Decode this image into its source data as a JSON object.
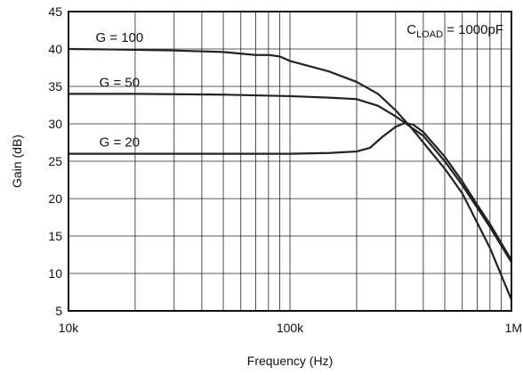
{
  "chart_data": {
    "type": "line",
    "title": "",
    "xlabel": "Frequency (Hz)",
    "ylabel": "Gain (dB)",
    "x_scale": "log",
    "xlim": [
      10000,
      1000000
    ],
    "ylim": [
      5,
      45
    ],
    "x_ticks": [
      {
        "value": 10000,
        "label": "10k"
      },
      {
        "value": 100000,
        "label": "100k"
      },
      {
        "value": 1000000,
        "label": "1M"
      }
    ],
    "y_ticks": [
      5,
      10,
      15,
      20,
      25,
      30,
      35,
      40,
      45
    ],
    "y_tick_labels": [
      "5",
      "10",
      "15",
      "20",
      "25",
      "30",
      "35",
      "40",
      "45"
    ],
    "grid": true,
    "annotation": {
      "main": "C",
      "subscript": "LOAD",
      "suffix": " = 1000pF"
    },
    "series": [
      {
        "name": "G = 100",
        "x": [
          10000,
          20000,
          30000,
          50000,
          70000,
          80000,
          90000,
          100000,
          150000,
          200000,
          250000,
          300000,
          350000,
          400000,
          500000,
          600000,
          700000,
          800000,
          1000000
        ],
        "y": [
          40,
          39.9,
          39.8,
          39.6,
          39.2,
          39.2,
          39.0,
          38.4,
          37.0,
          35.6,
          34.0,
          31.8,
          29.6,
          27.5,
          24.0,
          20.7,
          16.8,
          13.4,
          6.5
        ]
      },
      {
        "name": "G = 50",
        "x": [
          10000,
          20000,
          50000,
          100000,
          150000,
          200000,
          250000,
          300000,
          350000,
          400000,
          500000,
          600000,
          700000,
          800000,
          1000000
        ],
        "y": [
          34,
          34,
          33.9,
          33.7,
          33.5,
          33.3,
          32.4,
          31.0,
          29.6,
          28.4,
          25.0,
          21.8,
          18.8,
          16.2,
          11.5
        ]
      },
      {
        "name": "G = 20",
        "x": [
          10000,
          50000,
          100000,
          150000,
          200000,
          230000,
          260000,
          300000,
          330000,
          360000,
          400000,
          500000,
          600000,
          700000,
          800000,
          1000000
        ],
        "y": [
          26,
          26,
          26,
          26.1,
          26.3,
          26.8,
          28.2,
          29.6,
          30.1,
          29.9,
          28.9,
          25.6,
          22.3,
          19.2,
          16.6,
          11.8
        ]
      }
    ]
  }
}
